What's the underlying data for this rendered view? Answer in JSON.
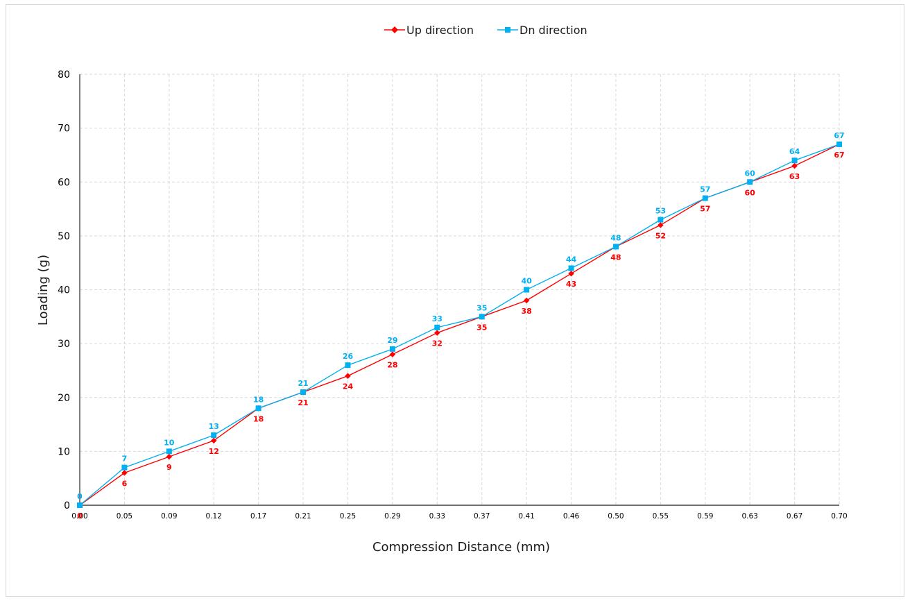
{
  "chart_data": {
    "type": "line",
    "xlabel": "Compression Distance (mm)",
    "ylabel": "Loading (g)",
    "ylim": [
      0,
      80
    ],
    "yticks": [
      "0",
      "10",
      "20",
      "30",
      "40",
      "50",
      "60",
      "70",
      "80"
    ],
    "categories": [
      "0.00",
      "0.05",
      "0.09",
      "0.12",
      "0.17",
      "0.21",
      "0.25",
      "0.29",
      "0.33",
      "0.37",
      "0.41",
      "0.46",
      "0.50",
      "0.55",
      "0.59",
      "0.63",
      "0.67",
      "0.70"
    ],
    "grid": true,
    "legend_position": "top-center",
    "series": [
      {
        "name": "Up direction",
        "color": "#ff0000",
        "marker": "diamond",
        "values": [
          0,
          6,
          9,
          12,
          18,
          21,
          24,
          28,
          32,
          35,
          38,
          43,
          48,
          52,
          57,
          60,
          63,
          67
        ]
      },
      {
        "name": "Dn direction",
        "color": "#00b0f0",
        "marker": "square",
        "values": [
          0,
          7,
          10,
          13,
          18,
          21,
          26,
          29,
          33,
          35,
          40,
          44,
          48,
          53,
          57,
          60,
          64,
          67
        ]
      }
    ]
  }
}
